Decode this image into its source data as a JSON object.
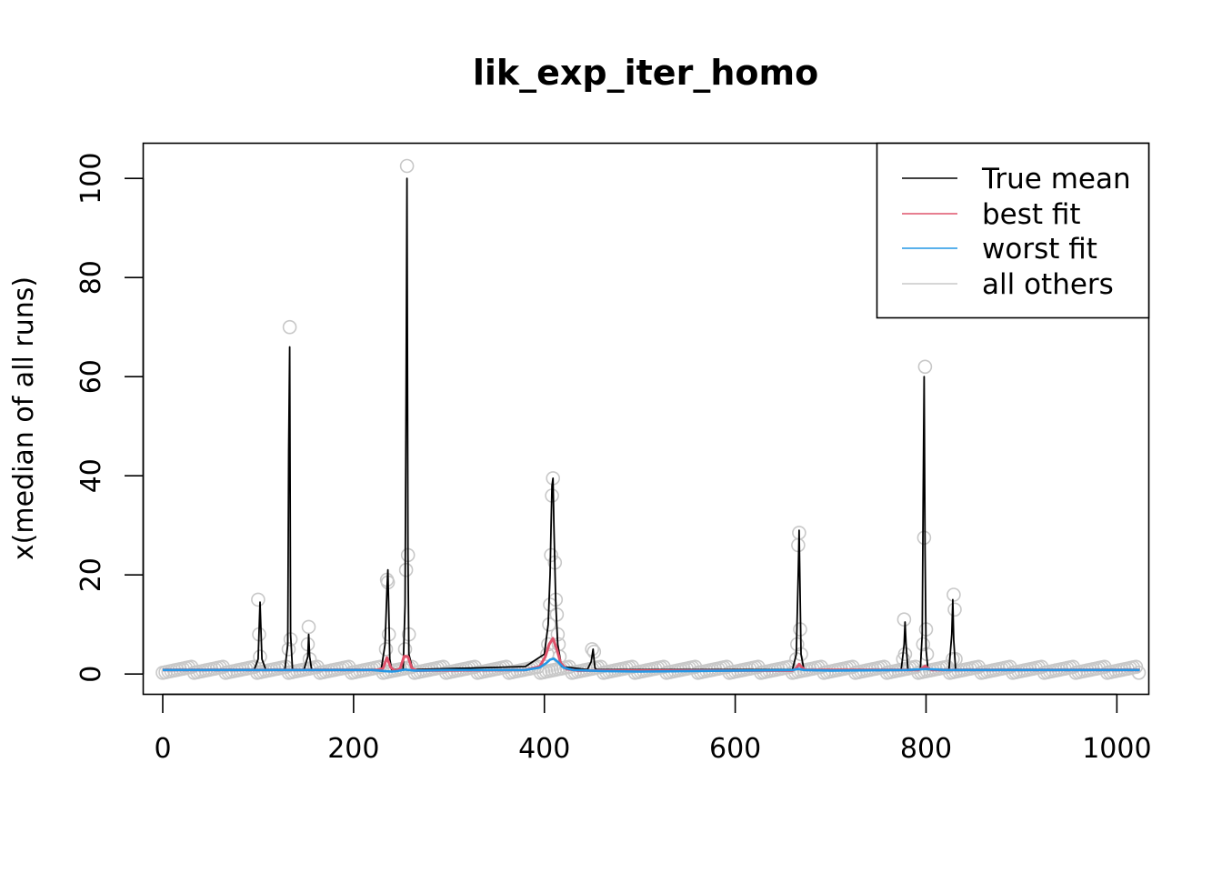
{
  "chart_data": {
    "type": "line",
    "title": "lik_exp_iter_homo",
    "xlabel": "",
    "ylabel": "x(median of all runs)",
    "xlim": [
      -20,
      1033
    ],
    "ylim": [
      -4,
      107
    ],
    "x_ticks": [
      "0",
      "200",
      "400",
      "600",
      "800",
      "1000"
    ],
    "y_ticks": [
      "0",
      "20",
      "40",
      "60",
      "80",
      "100"
    ],
    "grid": false,
    "legend": {
      "position": "top-right",
      "entries": [
        {
          "label": "True mean",
          "color": "#000000"
        },
        {
          "label": "best fit",
          "color": "#DF536B"
        },
        {
          "label": "worst fit",
          "color": "#2297E6"
        },
        {
          "label": "all others",
          "color": "#C8C8C8"
        }
      ]
    },
    "baseline": {
      "x_start": 0,
      "x_end": 1024,
      "value": 0.85
    },
    "series": [
      {
        "name": "True mean",
        "color": "#000000",
        "x": [
          0,
          96,
          100,
          101,
          102,
          104,
          108,
          128,
          131,
          132,
          133,
          134,
          136,
          148,
          152,
          153,
          154,
          156,
          229,
          233,
          235,
          236,
          237,
          238,
          240,
          252,
          254,
          255,
          256,
          257,
          258,
          262,
          380,
          400,
          404,
          406,
          407,
          408,
          409,
          410,
          412,
          414,
          418,
          445,
          449,
          451,
          452,
          453,
          455,
          660,
          664,
          666,
          667,
          668,
          669,
          672,
          774,
          777,
          778,
          779,
          781,
          794,
          796,
          797,
          798,
          799,
          800,
          802,
          824,
          827,
          828,
          829,
          831,
          1024
        ],
        "values": [
          0.9,
          0.9,
          3,
          9,
          14.5,
          3,
          0.9,
          0.9,
          6,
          45,
          66,
          8,
          0.9,
          0.9,
          3.5,
          8,
          3.5,
          0.9,
          0.9,
          6,
          17,
          21,
          12,
          3,
          0.9,
          0.9,
          14,
          55,
          100,
          24,
          4,
          0.9,
          1.5,
          4,
          10,
          20,
          30,
          38,
          39.5,
          30,
          14,
          6,
          1.5,
          0.9,
          2.5,
          5,
          3,
          1.2,
          0.9,
          0.9,
          4,
          20,
          29,
          16,
          4,
          0.9,
          0.9,
          6,
          10.5,
          6,
          0.9,
          0.9,
          8,
          35,
          60,
          25,
          5,
          0.9,
          0.9,
          8,
          15,
          7,
          0.9,
          0.9
        ]
      },
      {
        "name": "best fit",
        "color": "#DF536B",
        "x": [
          0,
          226,
          231,
          235,
          239,
          244,
          249,
          253,
          257,
          261,
          266,
          380,
          395,
          401,
          405,
          409,
          413,
          417,
          423,
          435,
          660,
          664,
          667,
          670,
          674,
          792,
          796,
          799,
          802,
          806,
          1024
        ],
        "values": [
          0.8,
          0.8,
          1.2,
          3.3,
          1.3,
          0.6,
          1.2,
          3.6,
          3.5,
          1.2,
          0.7,
          0.8,
          1.5,
          3.5,
          6.0,
          7.2,
          5.0,
          2.2,
          1.0,
          0.7,
          0.7,
          1.2,
          2.0,
          1.3,
          0.8,
          0.8,
          1.2,
          1.6,
          1.2,
          0.8,
          0.8
        ]
      },
      {
        "name": "worst fit",
        "color": "#2297E6",
        "x": [
          0,
          220,
          232,
          240,
          246,
          254,
          258,
          264,
          300,
          380,
          395,
          402,
          406,
          410,
          414,
          420,
          430,
          460,
          500,
          660,
          666,
          672,
          700,
          780,
          800,
          820,
          900,
          1024
        ],
        "values": [
          0.8,
          0.8,
          0.6,
          0.5,
          0.6,
          0.9,
          0.8,
          0.7,
          0.8,
          0.8,
          1.3,
          2.2,
          2.9,
          3.1,
          2.5,
          1.3,
          0.8,
          0.6,
          0.5,
          0.8,
          1.0,
          0.8,
          0.7,
          0.8,
          1.0,
          0.8,
          0.8,
          0.8
        ]
      }
    ],
    "scatter": {
      "name": "all others",
      "color": "#C8C8C8",
      "points": [
        [
          100,
          15
        ],
        [
          101,
          8
        ],
        [
          102,
          3.5
        ],
        [
          133,
          70
        ],
        [
          134,
          7
        ],
        [
          132,
          5
        ],
        [
          153,
          9.5
        ],
        [
          152,
          6
        ],
        [
          154,
          3
        ],
        [
          235,
          19
        ],
        [
          236,
          18.5
        ],
        [
          237,
          8
        ],
        [
          234,
          5
        ],
        [
          256,
          102.5
        ],
        [
          257,
          24
        ],
        [
          255,
          21
        ],
        [
          258,
          8
        ],
        [
          254,
          5
        ],
        [
          409,
          39.5
        ],
        [
          408,
          36
        ],
        [
          407,
          24
        ],
        [
          411,
          22.5
        ],
        [
          406,
          14
        ],
        [
          412,
          15
        ],
        [
          405,
          10
        ],
        [
          413,
          12
        ],
        [
          414,
          8
        ],
        [
          404,
          6
        ],
        [
          415,
          6
        ],
        [
          403,
          4
        ],
        [
          416,
          3.5
        ],
        [
          450,
          5
        ],
        [
          452,
          4.5
        ],
        [
          667,
          28.5
        ],
        [
          666,
          26
        ],
        [
          668,
          9
        ],
        [
          665,
          6
        ],
        [
          669,
          4
        ],
        [
          664,
          3
        ],
        [
          777,
          11
        ],
        [
          778,
          4
        ],
        [
          776,
          3
        ],
        [
          799,
          62
        ],
        [
          798,
          27.5
        ],
        [
          800,
          9
        ],
        [
          797,
          6
        ],
        [
          801,
          4
        ],
        [
          829,
          16
        ],
        [
          830,
          13
        ],
        [
          828,
          3
        ],
        [
          831,
          3
        ]
      ]
    }
  }
}
